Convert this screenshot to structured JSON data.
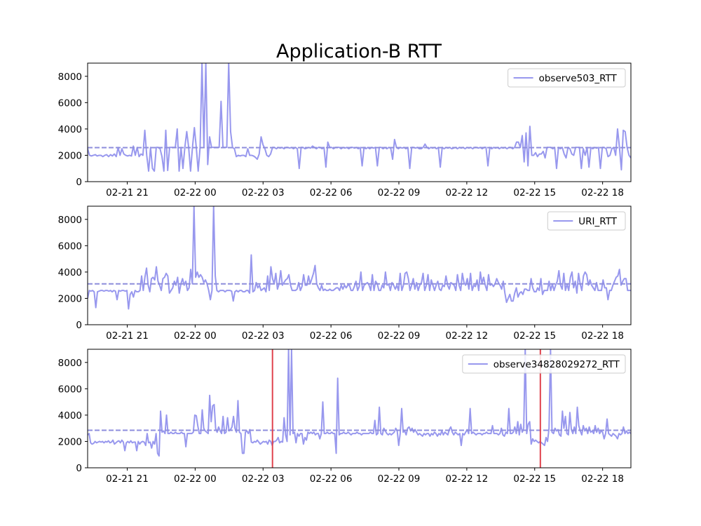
{
  "title": "Application-B RTT",
  "colors": {
    "series": "#9898ee",
    "mean": "#8e8edc",
    "marker": "#e0434d",
    "axis": "#000000"
  },
  "chart_data": [
    {
      "type": "line",
      "series": [
        {
          "name": "observe503_RTT"
        }
      ],
      "xlim": [
        "2021-02-21 19:15",
        "2021-02-22 19:15"
      ],
      "ylim": [
        0,
        9000
      ],
      "x_tick_labels": [
        "02-21 21",
        "02-22 00",
        "02-22 03",
        "02-22 06",
        "02-22 09",
        "02-22 12",
        "02-22 15",
        "02-22 18"
      ],
      "y_tick_labels": [
        "0",
        "2000",
        "4000",
        "6000",
        "8000"
      ],
      "y_ticks": [
        0,
        2000,
        4000,
        6000,
        8000
      ],
      "mean_line": 2580,
      "legend": "top-right",
      "grid": false,
      "values": [
        2500,
        2000,
        1950,
        2000,
        2050,
        1950,
        2000,
        2000,
        1900,
        2000,
        2050,
        1900,
        2050,
        1950,
        2100,
        1900,
        2600,
        2000,
        2500,
        2100,
        2000,
        1950,
        2000,
        1950,
        2700,
        2000,
        2600,
        1900,
        2100,
        2000,
        3900,
        2000,
        800,
        2600,
        1000,
        800,
        2600,
        2600,
        2500,
        1900,
        800,
        3900,
        850,
        2600,
        2600,
        2600,
        2600,
        4000,
        800,
        2600,
        1000,
        2600,
        3800,
        2600,
        800,
        2600,
        4100,
        2600,
        800,
        2600,
        9000,
        2600,
        9000,
        1300,
        3400,
        2600,
        2600,
        2600,
        2600,
        2600,
        6100,
        2600,
        2600,
        2600,
        9000,
        3800,
        2600,
        2500,
        1900,
        2000,
        1950,
        2000,
        2000,
        1900,
        2500,
        2000,
        2000,
        1950,
        1850,
        1700,
        2100,
        3400,
        2800,
        2500,
        2000,
        1900,
        2100,
        2600,
        2600,
        2500,
        2600,
        2550,
        2600,
        2500,
        2600,
        2600,
        2550,
        2600,
        2500,
        2600,
        2500,
        1000,
        2600,
        2600,
        2500,
        2550,
        2600,
        2550,
        2700,
        2600,
        2500,
        2600,
        2600,
        2500,
        2600,
        1100,
        3000,
        2600,
        2600,
        2500,
        2600,
        2600,
        2600,
        2500,
        2600,
        2550,
        2600,
        2500,
        2600,
        2600,
        2550,
        2600,
        2500,
        2600,
        1200,
        2600,
        2500,
        2600,
        2500,
        2600,
        2550,
        2600,
        1200,
        2600,
        2600,
        2500,
        2600,
        2500,
        2600,
        2550,
        1700,
        3200,
        2600,
        2500,
        2600,
        2550,
        2600,
        2500,
        2600,
        1000,
        2600,
        2600,
        2550,
        2600,
        2500,
        2500,
        2600,
        2850,
        2600,
        2500,
        2600,
        2550,
        2600,
        2500,
        2600,
        1100,
        2600,
        2500,
        2600,
        2550,
        2600,
        2500,
        2550,
        2600,
        2500,
        2600,
        2550,
        2600,
        2500,
        2600,
        2550,
        2600,
        2500,
        2600,
        2600,
        2550,
        2600,
        2500,
        2600,
        2600,
        1200,
        2600,
        2500,
        2600,
        2550,
        2600,
        2500,
        2600,
        2550,
        2600,
        2500,
        2600,
        2600,
        2500,
        2600,
        3000,
        3000,
        2600,
        3500,
        1500,
        3700,
        1200,
        4200,
        2000,
        2000,
        2200,
        1900,
        2100,
        2100,
        2300,
        1800,
        2600,
        2600,
        2600,
        2500,
        2600,
        1000,
        2600,
        2500,
        2600,
        2100,
        1800,
        2600,
        2500,
        2100,
        2000,
        2600,
        2600,
        2600,
        1000,
        2500,
        2000,
        2600,
        1100,
        2600,
        2500,
        2600,
        2550,
        2600,
        1000,
        2600,
        2600,
        2500,
        1900,
        2000,
        2500,
        2600,
        2000,
        4000,
        2600,
        900,
        3900,
        3800,
        2600,
        2000,
        1800
      ]
    },
    {
      "type": "line",
      "series": [
        {
          "name": "URI_RTT"
        }
      ],
      "xlim": [
        "2021-02-21 19:15",
        "2021-02-22 19:15"
      ],
      "ylim": [
        0,
        9000
      ],
      "x_tick_labels": [
        "02-21 21",
        "02-22 00",
        "02-22 03",
        "02-22 06",
        "02-22 09",
        "02-22 12",
        "02-22 15",
        "02-22 18"
      ],
      "y_tick_labels": [
        "0",
        "2000",
        "4000",
        "6000",
        "8000"
      ],
      "y_ticks": [
        0,
        2000,
        4000,
        6000,
        8000
      ],
      "mean_line": 3100,
      "legend": "top-right",
      "grid": false,
      "values": [
        2000,
        2600,
        2550,
        2600,
        2500,
        1300,
        2500,
        2550,
        2600,
        2600,
        2550,
        2600,
        2600,
        2550,
        2600,
        2500,
        2600,
        2550,
        1900,
        2600,
        2550,
        2600,
        2600,
        2550,
        2600,
        1200,
        2300,
        2500,
        2100,
        2600,
        2500,
        2500,
        2600,
        3700,
        2600,
        3600,
        4300,
        3000,
        2500,
        3500,
        3600,
        3400,
        4400,
        3300,
        3000,
        2600,
        3500,
        3600,
        3900,
        3700,
        2400,
        2600,
        2800,
        3300,
        3000,
        3600,
        2400,
        3100,
        3500,
        3000,
        3300,
        2600,
        2800,
        4200,
        3100,
        9000,
        3600,
        4000,
        3600,
        3800,
        3600,
        3200,
        3400,
        3100,
        2600,
        1900,
        2600,
        9000,
        3700,
        2600,
        2500,
        2600,
        2600,
        2600,
        2500,
        2600,
        2600,
        2600,
        2550,
        1800,
        2500,
        2600,
        2500,
        2600,
        2600,
        2500,
        2500,
        2600,
        2600,
        2400,
        5300,
        2500,
        2600,
        3200,
        2800,
        3000,
        2600,
        2700,
        2800,
        2500,
        3700,
        2600,
        4400,
        3500,
        3100,
        3900,
        2700,
        3100,
        4100,
        3000,
        3200,
        3400,
        3500,
        3800,
        3000,
        2600,
        2600,
        2600,
        2700,
        3200,
        2600,
        2900,
        3800,
        3000,
        3000,
        3700,
        3100,
        3500,
        3900,
        4500,
        3100,
        2800,
        2600,
        3000,
        2600,
        2700,
        2600,
        2600,
        2700,
        2600,
        2600,
        2700,
        2800,
        2800,
        2600,
        3000,
        2700,
        3000,
        2800,
        3000,
        3000,
        2600,
        2600,
        2900,
        3300,
        2600,
        2900,
        4000,
        2600,
        3000,
        3100,
        3200,
        3000,
        2600,
        3800,
        2600,
        3300,
        3100,
        2600,
        2600,
        3000,
        2800,
        4000,
        3000,
        3100,
        2600,
        3200,
        3000,
        2700,
        3000,
        2600,
        3900,
        2600,
        3000,
        3900,
        4000,
        3500,
        2600,
        3000,
        3500,
        2700,
        3200,
        2600,
        3000,
        3200,
        3900,
        2600,
        3000,
        3800,
        2600,
        3400,
        3000,
        2600,
        3000,
        3300,
        2700,
        2600,
        3000,
        2900,
        3700,
        3000,
        2700,
        3200,
        3100,
        3000,
        2600,
        3800,
        3000,
        2600,
        3900,
        3200,
        3000,
        3500,
        2700,
        3900,
        2600,
        3000,
        2900,
        3400,
        2600,
        4000,
        3100,
        3600,
        3000,
        2600,
        3800,
        3000,
        3100,
        2900,
        3100,
        3500,
        3200,
        3000,
        2700,
        3300,
        2400,
        1700,
        2000,
        2300,
        1800,
        1800,
        2400,
        2800,
        2100,
        2400,
        2500,
        2300,
        2700,
        2700,
        2600,
        2600,
        3500,
        2800,
        2500,
        2500,
        2800,
        2600,
        3500,
        2300,
        2600,
        2600,
        2600,
        3300,
        2600,
        3100,
        2600,
        3000,
        3300,
        4100,
        3000,
        2700,
        3900,
        2600,
        3100,
        2600,
        3600,
        4000,
        2800,
        3300,
        2400,
        3900,
        3100,
        2600,
        3700,
        4000,
        3800,
        3000,
        3400,
        3000,
        2800,
        2600,
        3200,
        2600,
        2600,
        2600,
        3400,
        2800,
        2800,
        1900,
        2600,
        2600,
        3000,
        3300,
        3600,
        3700,
        4200,
        3000,
        3300,
        3500,
        3500,
        2600,
        2600,
        2600
      ]
    },
    {
      "type": "line",
      "series": [
        {
          "name": "observe34828029272_RTT"
        }
      ],
      "xlim": [
        "2021-02-21 19:15",
        "2021-02-22 19:15"
      ],
      "ylim": [
        0,
        9000
      ],
      "x_tick_labels": [
        "02-21 21",
        "02-22 00",
        "02-22 03",
        "02-22 06",
        "02-22 09",
        "02-22 12",
        "02-22 15",
        "02-22 18"
      ],
      "y_tick_labels": [
        "0",
        "2000",
        "4000",
        "6000",
        "8000"
      ],
      "y_ticks": [
        0,
        2000,
        4000,
        6000,
        8000
      ],
      "mean_line": 2850,
      "markers_x": [
        "2021-02-22 03:25",
        "2021-02-22 15:15"
      ],
      "legend": "top-right",
      "grid": false,
      "values": [
        2500,
        2600,
        1900,
        1800,
        1850,
        2000,
        1900,
        1950,
        2000,
        1950,
        2000,
        1900,
        2000,
        1950,
        2050,
        1900,
        1950,
        2100,
        1800,
        1900,
        2000,
        2050,
        1900,
        2100,
        1950,
        1300,
        1900,
        2000,
        1900,
        2050,
        1900,
        1950,
        1950,
        1300,
        2000,
        1800,
        1950,
        2000,
        1950,
        1700,
        2600,
        1900,
        1950,
        1500,
        2000,
        1800,
        2600,
        1100,
        900,
        4300,
        2700,
        2800,
        2600,
        4000,
        2600,
        2600,
        2700,
        2600,
        2600,
        2700,
        2600,
        2600,
        2600,
        2700,
        2600,
        2600,
        1600,
        2600,
        2600,
        2600,
        2600,
        2700,
        4000,
        3950,
        3200,
        2600,
        2600,
        4400,
        3000,
        2800,
        2700,
        2600,
        5500,
        3500,
        4700,
        4800,
        3000,
        2700,
        3100,
        2800,
        2600,
        3900,
        2600,
        2700,
        3800,
        2800,
        2900,
        3100,
        3900,
        3000,
        2700,
        5100,
        2700,
        2600,
        1100,
        1100,
        2700,
        2800,
        2600,
        2900,
        1950,
        1900,
        2000,
        1950,
        2100,
        1950,
        1800,
        1900,
        2000,
        1950,
        2000,
        1800,
        2100,
        2000,
        1700,
        2000,
        2000,
        2100,
        2300,
        1900,
        2000,
        1950,
        3800,
        2500,
        2000,
        9000,
        2500,
        9000,
        2600,
        2700,
        1900,
        2600,
        2400,
        2600,
        2600,
        1800,
        2300,
        2100,
        2700,
        2600,
        2700,
        2600,
        2700,
        2500,
        2600,
        2600,
        2200,
        2600,
        5000,
        2600,
        2600,
        2700,
        2600,
        2600,
        2700,
        2600,
        2600,
        1100,
        6800,
        2500,
        2600,
        2600,
        2700,
        2600,
        2600,
        2700,
        2600,
        2500,
        2600,
        2600,
        2600,
        2700,
        2600,
        2600,
        2500,
        2600,
        2600,
        2600,
        2600,
        2600,
        2700,
        2600,
        2600,
        3600,
        2500,
        2600,
        4600,
        2600,
        2500,
        3000,
        2800,
        2600,
        2500,
        2600,
        2500,
        2600,
        2700,
        3000,
        2800,
        1700,
        2600,
        4500,
        2700,
        2800,
        2500,
        3000,
        3100,
        2800,
        3000,
        2700,
        2900,
        2700,
        2500,
        2600,
        2500,
        2400,
        2600,
        2500,
        2600,
        2600,
        2400,
        2600,
        2500,
        2700,
        2600,
        2400,
        2600,
        2500,
        2800,
        2500,
        2700,
        2600,
        2500,
        2900,
        3100,
        2700,
        2500,
        2700,
        2600,
        2500,
        2600,
        1700,
        2600,
        2500,
        2700,
        2900,
        2600,
        4500,
        2600,
        2700,
        2600,
        2500,
        2600,
        2600,
        2600,
        2500,
        2600,
        2600,
        2700,
        2600,
        2600,
        2600,
        3200,
        2600,
        2600,
        2600,
        2500,
        2600,
        3000,
        2500,
        2400,
        2700,
        2600,
        4500,
        2600,
        2600,
        2700,
        3100,
        2600,
        3500,
        2500,
        3300,
        2700,
        3000,
        9000,
        2600,
        3300,
        3500,
        1800,
        2200,
        2000,
        2100,
        2000,
        1900,
        2000,
        1900,
        1800,
        1700,
        2300,
        2000,
        3000,
        9000,
        2700,
        2600,
        3000,
        2800,
        2900,
        2500,
        2400,
        4300,
        3000,
        3900,
        2600,
        2500,
        4200,
        2900,
        2600,
        3100,
        2600,
        4600,
        3200,
        2800,
        2500,
        3200,
        2800,
        3000,
        2600,
        3100,
        2700,
        2800,
        2600,
        3200,
        2700,
        3000,
        2600,
        2800,
        2700,
        2200,
        2600,
        3700,
        2600,
        2500,
        2400,
        2600,
        2500,
        2400,
        2200,
        2600,
        2500,
        2600,
        3100,
        2600,
        2800,
        2600,
        2700,
        2600
      ]
    }
  ]
}
